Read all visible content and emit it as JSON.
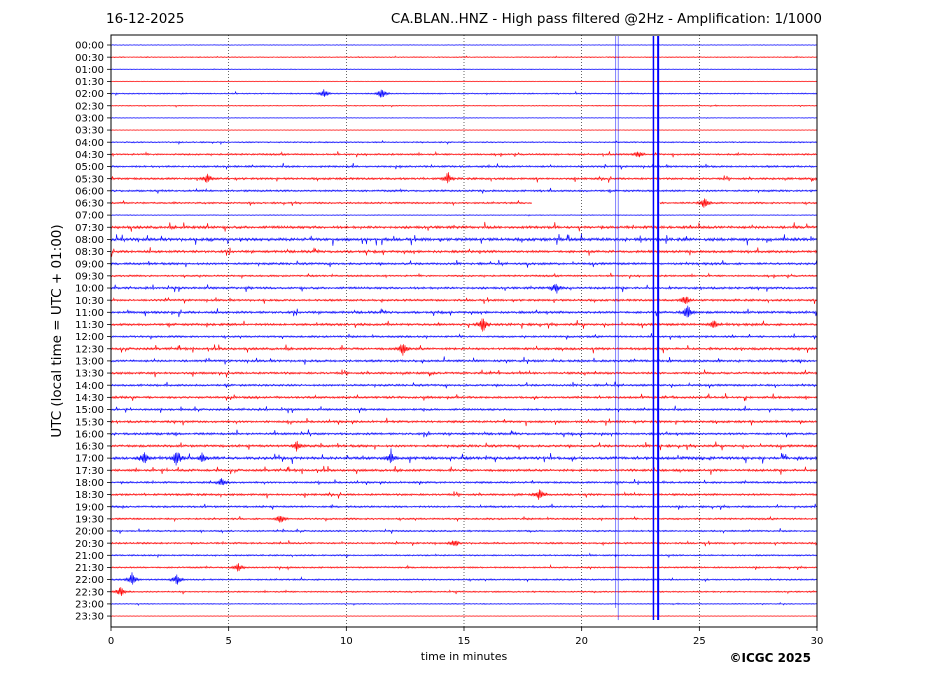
{
  "header": {
    "date": "16-12-2025",
    "title": "CA.BLAN..HNZ - High pass filtered @2Hz - Amplification: 1/1000"
  },
  "footer": {
    "copyright": "©ICGC 2025"
  },
  "chart_data": {
    "type": "line",
    "title": "CA.BLAN..HNZ - High pass filtered @2Hz - Amplification: 1/1000",
    "xlabel": "time in minutes",
    "ylabel": "UTC (local time = UTC + 01:00)",
    "xlim": [
      0,
      30
    ],
    "x_ticks": [
      0,
      5,
      10,
      15,
      20,
      25,
      30
    ],
    "vertical_gridlines_dotted": [
      5,
      10,
      15,
      20,
      25
    ],
    "row_labels": [
      "00:00",
      "00:30",
      "01:00",
      "01:30",
      "02:00",
      "02:30",
      "03:00",
      "03:30",
      "04:00",
      "04:30",
      "05:00",
      "05:30",
      "06:00",
      "06:30",
      "07:00",
      "07:30",
      "08:00",
      "08:30",
      "09:00",
      "09:30",
      "10:00",
      "10:30",
      "11:00",
      "11:30",
      "12:00",
      "12:30",
      "13:00",
      "13:30",
      "14:00",
      "14:30",
      "15:00",
      "15:30",
      "16:00",
      "16:30",
      "17:00",
      "17:30",
      "18:00",
      "18:30",
      "19:00",
      "19:30",
      "20:00",
      "20:30",
      "21:00",
      "21:30",
      "22:00",
      "22:30",
      "23:00",
      "23:30"
    ],
    "trace_colors": [
      "#0000ff",
      "#ff0000"
    ],
    "colors": {
      "trace_a": "#0000ff",
      "trace_b": "#ff0000",
      "frame": "#000000",
      "grid": "#000000"
    },
    "activity": [
      0.2,
      0.6,
      0.3,
      0.2,
      0.9,
      0.6,
      0.2,
      0.2,
      1.0,
      1.6,
      1.8,
      2.0,
      1.8,
      1.6,
      0.4,
      2.8,
      3.2,
      2.6,
      2.2,
      1.6,
      2.2,
      2.0,
      2.4,
      2.4,
      1.8,
      2.4,
      2.2,
      2.2,
      2.0,
      2.2,
      2.0,
      2.2,
      2.2,
      2.4,
      3.0,
      2.4,
      1.8,
      2.0,
      1.8,
      1.6,
      1.4,
      1.6,
      1.2,
      1.4,
      1.4,
      1.2,
      0.6,
      0.2
    ],
    "events": [
      {
        "row": 4,
        "x": 9.05,
        "amp": 5
      },
      {
        "row": 4,
        "x": 11.5,
        "amp": 6
      },
      {
        "row": 9,
        "x": 22.4,
        "amp": 4
      },
      {
        "row": 11,
        "x": 4.1,
        "amp": 6
      },
      {
        "row": 11,
        "x": 14.3,
        "amp": 6
      },
      {
        "row": 13,
        "x": 25.2,
        "amp": 7
      },
      {
        "row": 20,
        "x": 18.9,
        "amp": 5
      },
      {
        "row": 21,
        "x": 24.4,
        "amp": 6
      },
      {
        "row": 22,
        "x": 24.5,
        "amp": 9
      },
      {
        "row": 23,
        "x": 15.8,
        "amp": 9
      },
      {
        "row": 23,
        "x": 25.6,
        "amp": 6
      },
      {
        "row": 25,
        "x": 12.4,
        "amp": 8
      },
      {
        "row": 33,
        "x": 7.9,
        "amp": 6
      },
      {
        "row": 34,
        "x": 1.4,
        "amp": 10
      },
      {
        "row": 34,
        "x": 2.8,
        "amp": 10
      },
      {
        "row": 34,
        "x": 3.9,
        "amp": 6
      },
      {
        "row": 34,
        "x": 11.9,
        "amp": 6
      },
      {
        "row": 36,
        "x": 4.7,
        "amp": 5
      },
      {
        "row": 37,
        "x": 18.2,
        "amp": 6
      },
      {
        "row": 39,
        "x": 7.2,
        "amp": 6
      },
      {
        "row": 41,
        "x": 14.6,
        "amp": 5
      },
      {
        "row": 43,
        "x": 5.4,
        "amp": 5
      },
      {
        "row": 44,
        "x": 0.9,
        "amp": 8
      },
      {
        "row": 44,
        "x": 2.8,
        "amp": 6
      },
      {
        "row": 45,
        "x": 0.4,
        "amp": 6
      }
    ],
    "vertical_spikes": [
      {
        "x": 21.45,
        "from_row": 0,
        "to_row": 46,
        "width": 0.5
      },
      {
        "x": 21.55,
        "from_row": 0,
        "to_row": 47,
        "width": 0.5
      },
      {
        "x": 23.05,
        "from_row": 0,
        "to_row": 47,
        "width": 1.5
      },
      {
        "x": 23.25,
        "from_row": 0,
        "to_row": 47,
        "width": 2
      }
    ],
    "gap": {
      "row": 13,
      "from_x": 17.9,
      "to_x": 23.3
    }
  }
}
